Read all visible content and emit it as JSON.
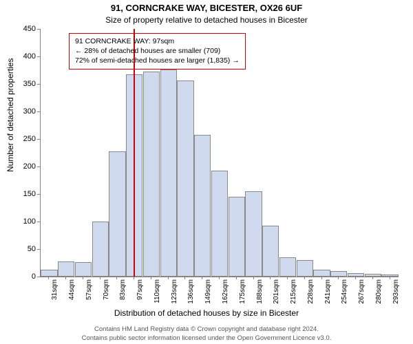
{
  "title_main": "91, CORNCRAKE WAY, BICESTER, OX26 6UF",
  "title_sub": "Size of property relative to detached houses in Bicester",
  "ylabel": "Number of detached properties",
  "xlabel": "Distribution of detached houses by size in Bicester",
  "footer_line1": "Contains HM Land Registry data © Crown copyright and database right 2024.",
  "footer_line2": "Contains public sector information licensed under the Open Government Licence v3.0.",
  "chart": {
    "type": "histogram",
    "ylim": [
      0,
      450
    ],
    "ytick_step": 50,
    "bar_fill": "#cfdaee",
    "bar_border": "#888888",
    "axis_color": "#808080",
    "background": "#ffffff",
    "vline_x": 97,
    "vline_color": "#cc0000",
    "categories": [
      "31sqm",
      "44sqm",
      "57sqm",
      "70sqm",
      "83sqm",
      "97sqm",
      "110sqm",
      "123sqm",
      "136sqm",
      "149sqm",
      "162sqm",
      "175sqm",
      "188sqm",
      "201sqm",
      "215sqm",
      "228sqm",
      "241sqm",
      "254sqm",
      "267sqm",
      "280sqm",
      "293sqm"
    ],
    "values": [
      12,
      28,
      26,
      100,
      228,
      368,
      372,
      376,
      356,
      258,
      192,
      145,
      155,
      92,
      35,
      30,
      12,
      10,
      6,
      5,
      4
    ],
    "annot_border": "#cc0000",
    "annot_text_color": "#000000",
    "annot_line1": "91 CORNCRAKE WAY: 97sqm",
    "annot_line2": "← 28% of detached houses are smaller (709)",
    "annot_line3": "72% of semi-detached houses are larger (1,835) →"
  }
}
